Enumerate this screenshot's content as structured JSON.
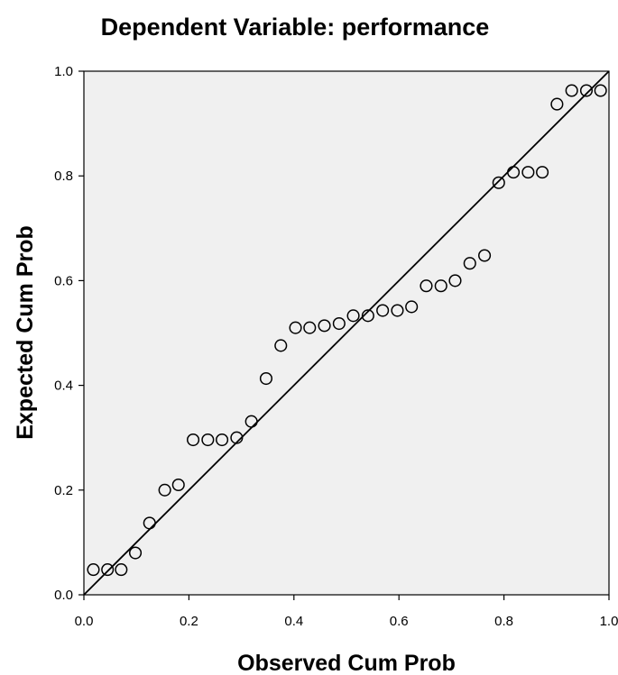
{
  "chart_data": {
    "type": "scatter",
    "title": "Dependent Variable: performance",
    "xlabel": "Observed Cum Prob",
    "ylabel": "Expected Cum Prob",
    "xlim": [
      0.0,
      1.0
    ],
    "ylim": [
      0.0,
      1.0
    ],
    "x_ticks": [
      "0.0",
      "0.2",
      "0.4",
      "0.6",
      "0.8",
      "1.0"
    ],
    "y_ticks": [
      "0.0",
      "0.2",
      "0.4",
      "0.6",
      "0.8",
      "1.0"
    ],
    "reference_line": [
      [
        0.0,
        0.0
      ],
      [
        1.0,
        1.0
      ]
    ],
    "grid": false,
    "plot_background": "#f0f0f0",
    "marker_color": "#000000",
    "points": [
      {
        "x": 0.018,
        "y": 0.048
      },
      {
        "x": 0.045,
        "y": 0.048
      },
      {
        "x": 0.071,
        "y": 0.048
      },
      {
        "x": 0.098,
        "y": 0.08
      },
      {
        "x": 0.125,
        "y": 0.137
      },
      {
        "x": 0.154,
        "y": 0.2
      },
      {
        "x": 0.18,
        "y": 0.21
      },
      {
        "x": 0.208,
        "y": 0.296
      },
      {
        "x": 0.236,
        "y": 0.296
      },
      {
        "x": 0.263,
        "y": 0.296
      },
      {
        "x": 0.291,
        "y": 0.3
      },
      {
        "x": 0.319,
        "y": 0.331
      },
      {
        "x": 0.347,
        "y": 0.413
      },
      {
        "x": 0.375,
        "y": 0.476
      },
      {
        "x": 0.403,
        "y": 0.51
      },
      {
        "x": 0.43,
        "y": 0.51
      },
      {
        "x": 0.458,
        "y": 0.514
      },
      {
        "x": 0.486,
        "y": 0.518
      },
      {
        "x": 0.513,
        "y": 0.533
      },
      {
        "x": 0.541,
        "y": 0.533
      },
      {
        "x": 0.569,
        "y": 0.543
      },
      {
        "x": 0.597,
        "y": 0.543
      },
      {
        "x": 0.624,
        "y": 0.55
      },
      {
        "x": 0.652,
        "y": 0.59
      },
      {
        "x": 0.68,
        "y": 0.59
      },
      {
        "x": 0.707,
        "y": 0.6
      },
      {
        "x": 0.735,
        "y": 0.633
      },
      {
        "x": 0.763,
        "y": 0.648
      },
      {
        "x": 0.79,
        "y": 0.787
      },
      {
        "x": 0.818,
        "y": 0.807
      },
      {
        "x": 0.846,
        "y": 0.807
      },
      {
        "x": 0.873,
        "y": 0.807
      },
      {
        "x": 0.901,
        "y": 0.937
      },
      {
        "x": 0.929,
        "y": 0.963
      },
      {
        "x": 0.957,
        "y": 0.963
      },
      {
        "x": 0.984,
        "y": 0.963
      }
    ]
  }
}
